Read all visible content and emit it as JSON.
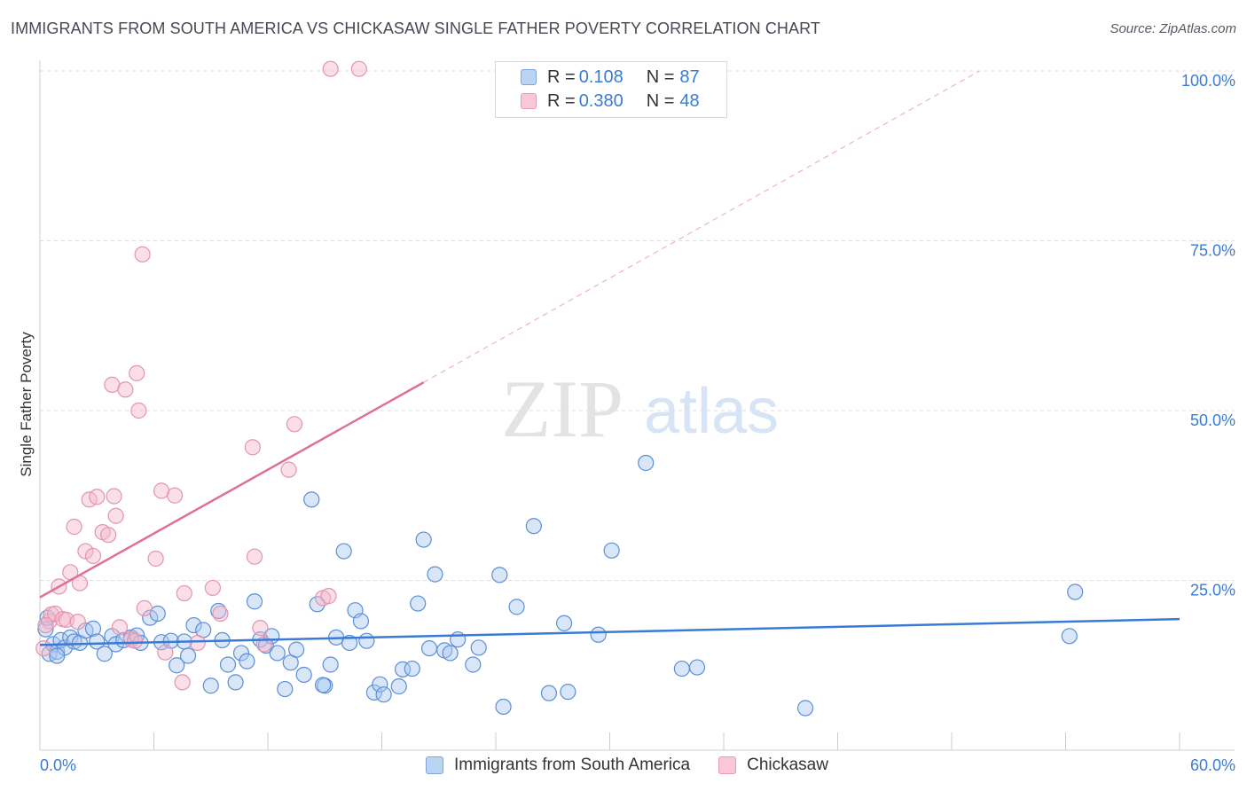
{
  "title": "IMMIGRANTS FROM SOUTH AMERICA VS CHICKASAW SINGLE FATHER POVERTY CORRELATION CHART",
  "source": "Source: ZipAtlas.com",
  "watermark": {
    "zip": "ZIP",
    "atlas": "atlas"
  },
  "legend": {
    "rows": [
      {
        "r_label": "R =",
        "r_value": "0.108",
        "n_label": "N =",
        "n_value": "87"
      },
      {
        "r_label": "R =",
        "r_value": "0.380",
        "n_label": "N =",
        "n_value": "48"
      }
    ]
  },
  "chart_data": {
    "type": "scatter",
    "title": "IMMIGRANTS FROM SOUTH AMERICA VS CHICKASAW SINGLE FATHER POVERTY CORRELATION CHART",
    "xlabel": "",
    "ylabel": "Single Father Poverty",
    "xlim": [
      0,
      60
    ],
    "ylim": [
      0,
      102
    ],
    "x_tick_labels": [
      "0.0%",
      "60.0%"
    ],
    "y_ticks": [
      25,
      50,
      75,
      100
    ],
    "y_tick_labels": [
      "25.0%",
      "50.0%",
      "75.0%",
      "100.0%"
    ],
    "grid": true,
    "colors": {
      "blue": "#3a7bd5",
      "blue_fill": "#a9c8f0",
      "pink": "#e0709a",
      "pink_fill": "#f5b8cc"
    },
    "series": [
      {
        "name": "Immigrants from South America",
        "color": "#3a7bd5",
        "trend": {
          "x0": 0,
          "y0": 15.5,
          "x1": 60,
          "y1": 19.3
        },
        "points": [
          [
            0.3,
            17.8
          ],
          [
            0.5,
            14.2
          ],
          [
            0.7,
            15.6
          ],
          [
            0.9,
            14.5
          ],
          [
            1.1,
            16.2
          ],
          [
            1.3,
            15.1
          ],
          [
            1.6,
            16.6
          ],
          [
            1.8,
            16.0
          ],
          [
            2.1,
            15.8
          ],
          [
            2.4,
            17.6
          ],
          [
            2.8,
            17.9
          ],
          [
            3.0,
            16.0
          ],
          [
            3.4,
            14.2
          ],
          [
            3.8,
            16.8
          ],
          [
            4.0,
            15.6
          ],
          [
            4.4,
            16.2
          ],
          [
            4.8,
            16.6
          ],
          [
            5.1,
            16.9
          ],
          [
            5.3,
            15.8
          ],
          [
            5.8,
            19.5
          ],
          [
            6.2,
            20.1
          ],
          [
            6.4,
            15.9
          ],
          [
            6.9,
            16.1
          ],
          [
            7.2,
            12.5
          ],
          [
            7.6,
            16.0
          ],
          [
            7.8,
            13.9
          ],
          [
            8.1,
            18.4
          ],
          [
            8.6,
            17.7
          ],
          [
            9.0,
            9.5
          ],
          [
            9.4,
            20.5
          ],
          [
            9.6,
            16.2
          ],
          [
            9.9,
            12.6
          ],
          [
            10.3,
            10.0
          ],
          [
            10.6,
            14.3
          ],
          [
            10.9,
            13.1
          ],
          [
            11.3,
            21.9
          ],
          [
            11.6,
            16.3
          ],
          [
            11.9,
            15.4
          ],
          [
            12.2,
            16.8
          ],
          [
            12.5,
            14.3
          ],
          [
            12.9,
            9.0
          ],
          [
            13.2,
            12.9
          ],
          [
            13.5,
            14.8
          ],
          [
            13.9,
            11.1
          ],
          [
            14.3,
            36.9
          ],
          [
            14.6,
            21.5
          ],
          [
            15.0,
            9.5
          ],
          [
            15.3,
            12.6
          ],
          [
            15.6,
            16.6
          ],
          [
            16.0,
            29.3
          ],
          [
            16.3,
            15.8
          ],
          [
            16.6,
            20.6
          ],
          [
            16.9,
            19.0
          ],
          [
            17.2,
            16.1
          ],
          [
            17.6,
            8.5
          ],
          [
            17.9,
            9.7
          ],
          [
            18.1,
            8.2
          ],
          [
            18.9,
            9.4
          ],
          [
            19.1,
            11.9
          ],
          [
            19.6,
            12.0
          ],
          [
            19.9,
            21.6
          ],
          [
            20.2,
            31.0
          ],
          [
            20.5,
            15.0
          ],
          [
            20.8,
            25.9
          ],
          [
            21.3,
            14.7
          ],
          [
            21.6,
            14.3
          ],
          [
            22.0,
            16.3
          ],
          [
            22.8,
            12.6
          ],
          [
            23.1,
            15.1
          ],
          [
            24.2,
            25.8
          ],
          [
            24.4,
            6.4
          ],
          [
            25.1,
            21.1
          ],
          [
            26.0,
            33.0
          ],
          [
            26.8,
            8.4
          ],
          [
            27.6,
            18.7
          ],
          [
            27.8,
            8.6
          ],
          [
            29.4,
            17.0
          ],
          [
            30.1,
            29.4
          ],
          [
            31.9,
            42.3
          ],
          [
            33.8,
            12.0
          ],
          [
            34.6,
            12.2
          ],
          [
            40.3,
            6.2
          ],
          [
            54.2,
            16.8
          ],
          [
            54.5,
            23.3
          ],
          [
            0.4,
            19.5
          ],
          [
            0.9,
            13.9
          ],
          [
            14.9,
            9.6
          ]
        ]
      },
      {
        "name": "Chickasaw",
        "color": "#e0709a",
        "trend": {
          "x0": 0,
          "y0": 22.5,
          "x1": 60,
          "y1": 116.5,
          "solid_to_x": 20.2
        },
        "points": [
          [
            0.2,
            15.0
          ],
          [
            0.5,
            19.0
          ],
          [
            0.6,
            20.0
          ],
          [
            0.8,
            20.1
          ],
          [
            1.0,
            24.1
          ],
          [
            1.2,
            19.3
          ],
          [
            1.4,
            19.2
          ],
          [
            1.6,
            26.2
          ],
          [
            1.8,
            32.9
          ],
          [
            2.0,
            18.9
          ],
          [
            2.1,
            24.6
          ],
          [
            2.4,
            29.3
          ],
          [
            2.6,
            36.9
          ],
          [
            2.8,
            28.6
          ],
          [
            3.0,
            37.3
          ],
          [
            3.3,
            32.1
          ],
          [
            3.6,
            31.7
          ],
          [
            3.8,
            53.8
          ],
          [
            3.9,
            37.4
          ],
          [
            4.0,
            34.5
          ],
          [
            4.2,
            18.1
          ],
          [
            4.5,
            53.1
          ],
          [
            4.8,
            16.3
          ],
          [
            5.0,
            16.1
          ],
          [
            5.1,
            55.5
          ],
          [
            5.2,
            50.0
          ],
          [
            5.4,
            73.0
          ],
          [
            5.5,
            20.9
          ],
          [
            6.1,
            28.2
          ],
          [
            6.4,
            38.2
          ],
          [
            6.6,
            14.4
          ],
          [
            7.1,
            37.5
          ],
          [
            7.5,
            10.0
          ],
          [
            7.6,
            23.1
          ],
          [
            8.3,
            15.8
          ],
          [
            9.1,
            23.9
          ],
          [
            9.5,
            20.1
          ],
          [
            11.2,
            44.6
          ],
          [
            11.3,
            28.5
          ],
          [
            11.6,
            18.0
          ],
          [
            11.8,
            15.6
          ],
          [
            13.1,
            41.3
          ],
          [
            13.4,
            48.0
          ],
          [
            14.9,
            22.4
          ],
          [
            15.2,
            22.7
          ],
          [
            15.3,
            100.3
          ],
          [
            16.8,
            100.3
          ],
          [
            0.3,
            18.4
          ]
        ]
      }
    ]
  },
  "bottom_legend": [
    "Immigrants from South America",
    "Chickasaw"
  ]
}
